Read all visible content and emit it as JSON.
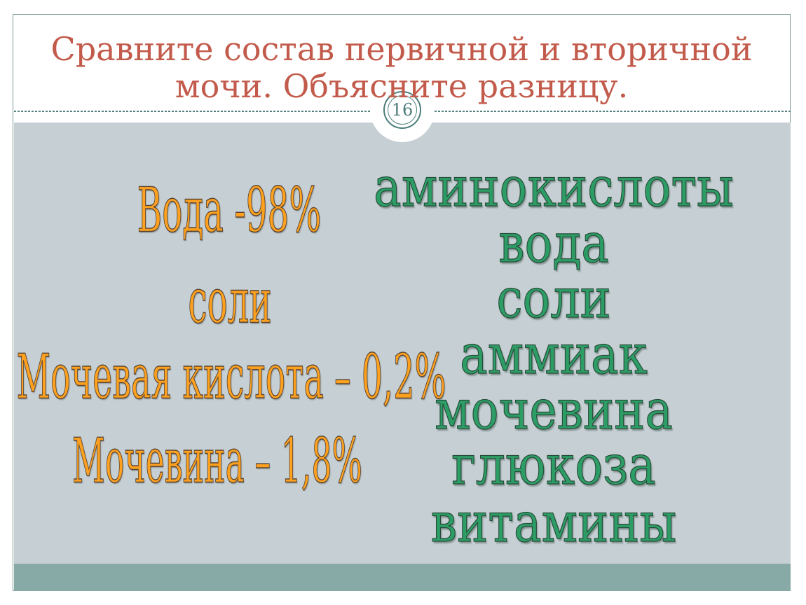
{
  "slide": {
    "page_number": "16",
    "title": {
      "line1": "Сравните состав первичной и вторичной",
      "line2": "мочи. Объясните разницу."
    },
    "left_column": {
      "style": "orange-wordart",
      "items": [
        "Вода -98%",
        "соли",
        "Мочевая кислота – 0,2%",
        "Мочевина – 1,8%"
      ]
    },
    "right_column": {
      "style": "green-wordart",
      "items": [
        "аминокислоты",
        "вода",
        "соли",
        "аммиак",
        "мочевина",
        "глюкоза",
        "витамины"
      ]
    },
    "colors": {
      "title_red": "#C25B4B",
      "orange_text": "#FFA11F",
      "green_text": "#2D9D66",
      "teal_accent": "#4E7E7C",
      "frame_border": "#7E9B99",
      "content_background": "#C6D0D4",
      "bottom_band": "#88AAA7"
    }
  }
}
